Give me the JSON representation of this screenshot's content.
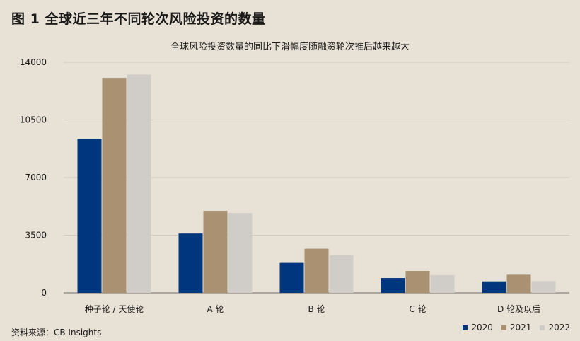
{
  "figure_title": "图 1 全球近三年不同轮次风险投资的数量",
  "source": "资料来源：CB Insights",
  "chart_data": {
    "type": "bar",
    "title": "全球风险投资数量的同比下滑幅度随融资轮次推后越来越大",
    "xlabel": "",
    "ylabel": "",
    "categories": [
      "种子轮 / 天使轮",
      "A 轮",
      "B 轮",
      "C 轮",
      "D 轮及以后"
    ],
    "series": [
      {
        "name": "2020",
        "color": "#00367e",
        "values": [
          9350,
          3600,
          1820,
          900,
          700
        ]
      },
      {
        "name": "2021",
        "color": "#a99172",
        "values": [
          13050,
          4980,
          2680,
          1330,
          1100
        ]
      },
      {
        "name": "2022",
        "color": "#d0cdc9",
        "values": [
          13250,
          4850,
          2280,
          1080,
          720
        ]
      }
    ],
    "yticks": [
      0,
      3500,
      7000,
      10500,
      14000
    ],
    "ylim": [
      0,
      14000
    ],
    "grid": true,
    "legend_position": "bottom-right"
  }
}
